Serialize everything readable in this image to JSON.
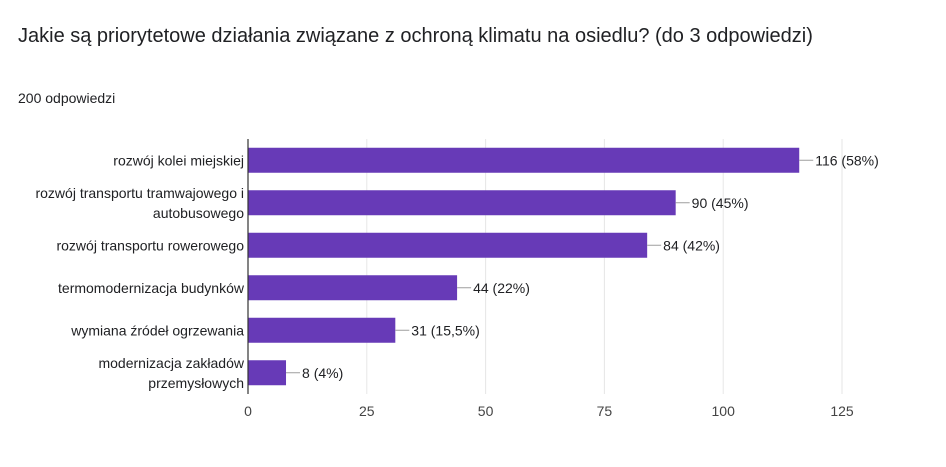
{
  "header": {
    "title": "Jakie są priorytetowe działania związane z ochroną klimatu na osiedlu? (do 3 odpowiedzi)",
    "response_count": "200 odpowiedzi"
  },
  "chart_data": {
    "type": "bar",
    "orientation": "horizontal",
    "categories": [
      [
        "rozwój kolei miejskiej"
      ],
      [
        "rozwój transportu tramwajowego i",
        "autobusowego"
      ],
      [
        "rozwój transportu rowerowego"
      ],
      [
        "termomodernizacja budynków"
      ],
      [
        "wymiana źródeł ogrzewania"
      ],
      [
        "modernizacja zakładów",
        "przemysłowych"
      ]
    ],
    "values": [
      116,
      90,
      84,
      44,
      31,
      8
    ],
    "data_labels": [
      "116 (58%)",
      "90 (45%)",
      "84 (42%)",
      "44 (22%)",
      "31 (15,5%)",
      "8 (4%)"
    ],
    "xlim": [
      0,
      125
    ],
    "xticks": [
      0,
      25,
      50,
      75,
      100,
      125
    ],
    "grid": true,
    "bar_color": "#673ab7"
  }
}
